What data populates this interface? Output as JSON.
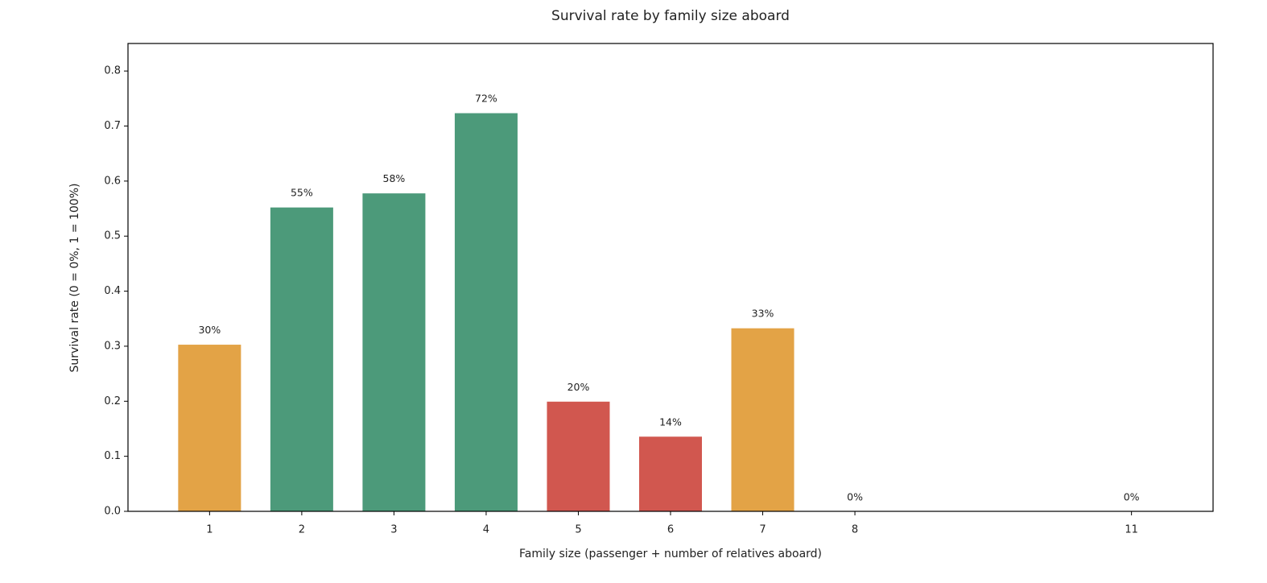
{
  "chart_data": {
    "type": "bar",
    "title": "Survival rate by family size aboard",
    "x_label": "Family size (passenger + number of relatives aboard)",
    "y_label": "Survival rate (0 = 0%, 1 = 100%)",
    "x": [
      1,
      2,
      3,
      4,
      5,
      6,
      7,
      8,
      11
    ],
    "values": [
      0.3035,
      0.5528,
      0.5784,
      0.7241,
      0.2,
      0.1364,
      0.3333,
      0,
      0
    ],
    "value_labels": [
      "30%",
      "55%",
      "58%",
      "72%",
      "20%",
      "14%",
      "33%",
      "0%",
      "0%"
    ],
    "colors": [
      "#e3a346",
      "#4c9a7a",
      "#4c9a7a",
      "#4c9a7a",
      "#d1574f",
      "#d1574f",
      "#e3a346",
      "#d1574f",
      "#d1574f"
    ],
    "xlim": [
      0.115,
      11.885
    ],
    "xticks": [
      1,
      2,
      3,
      4,
      5,
      6,
      7,
      8,
      11
    ],
    "ylim": [
      0,
      0.85
    ],
    "yticks": [
      {
        "value": 0,
        "label": "0.0"
      },
      0.1,
      0.2,
      0.3,
      0.4,
      0.5,
      0.6,
      0.7,
      0.8
    ],
    "grid": false
  }
}
